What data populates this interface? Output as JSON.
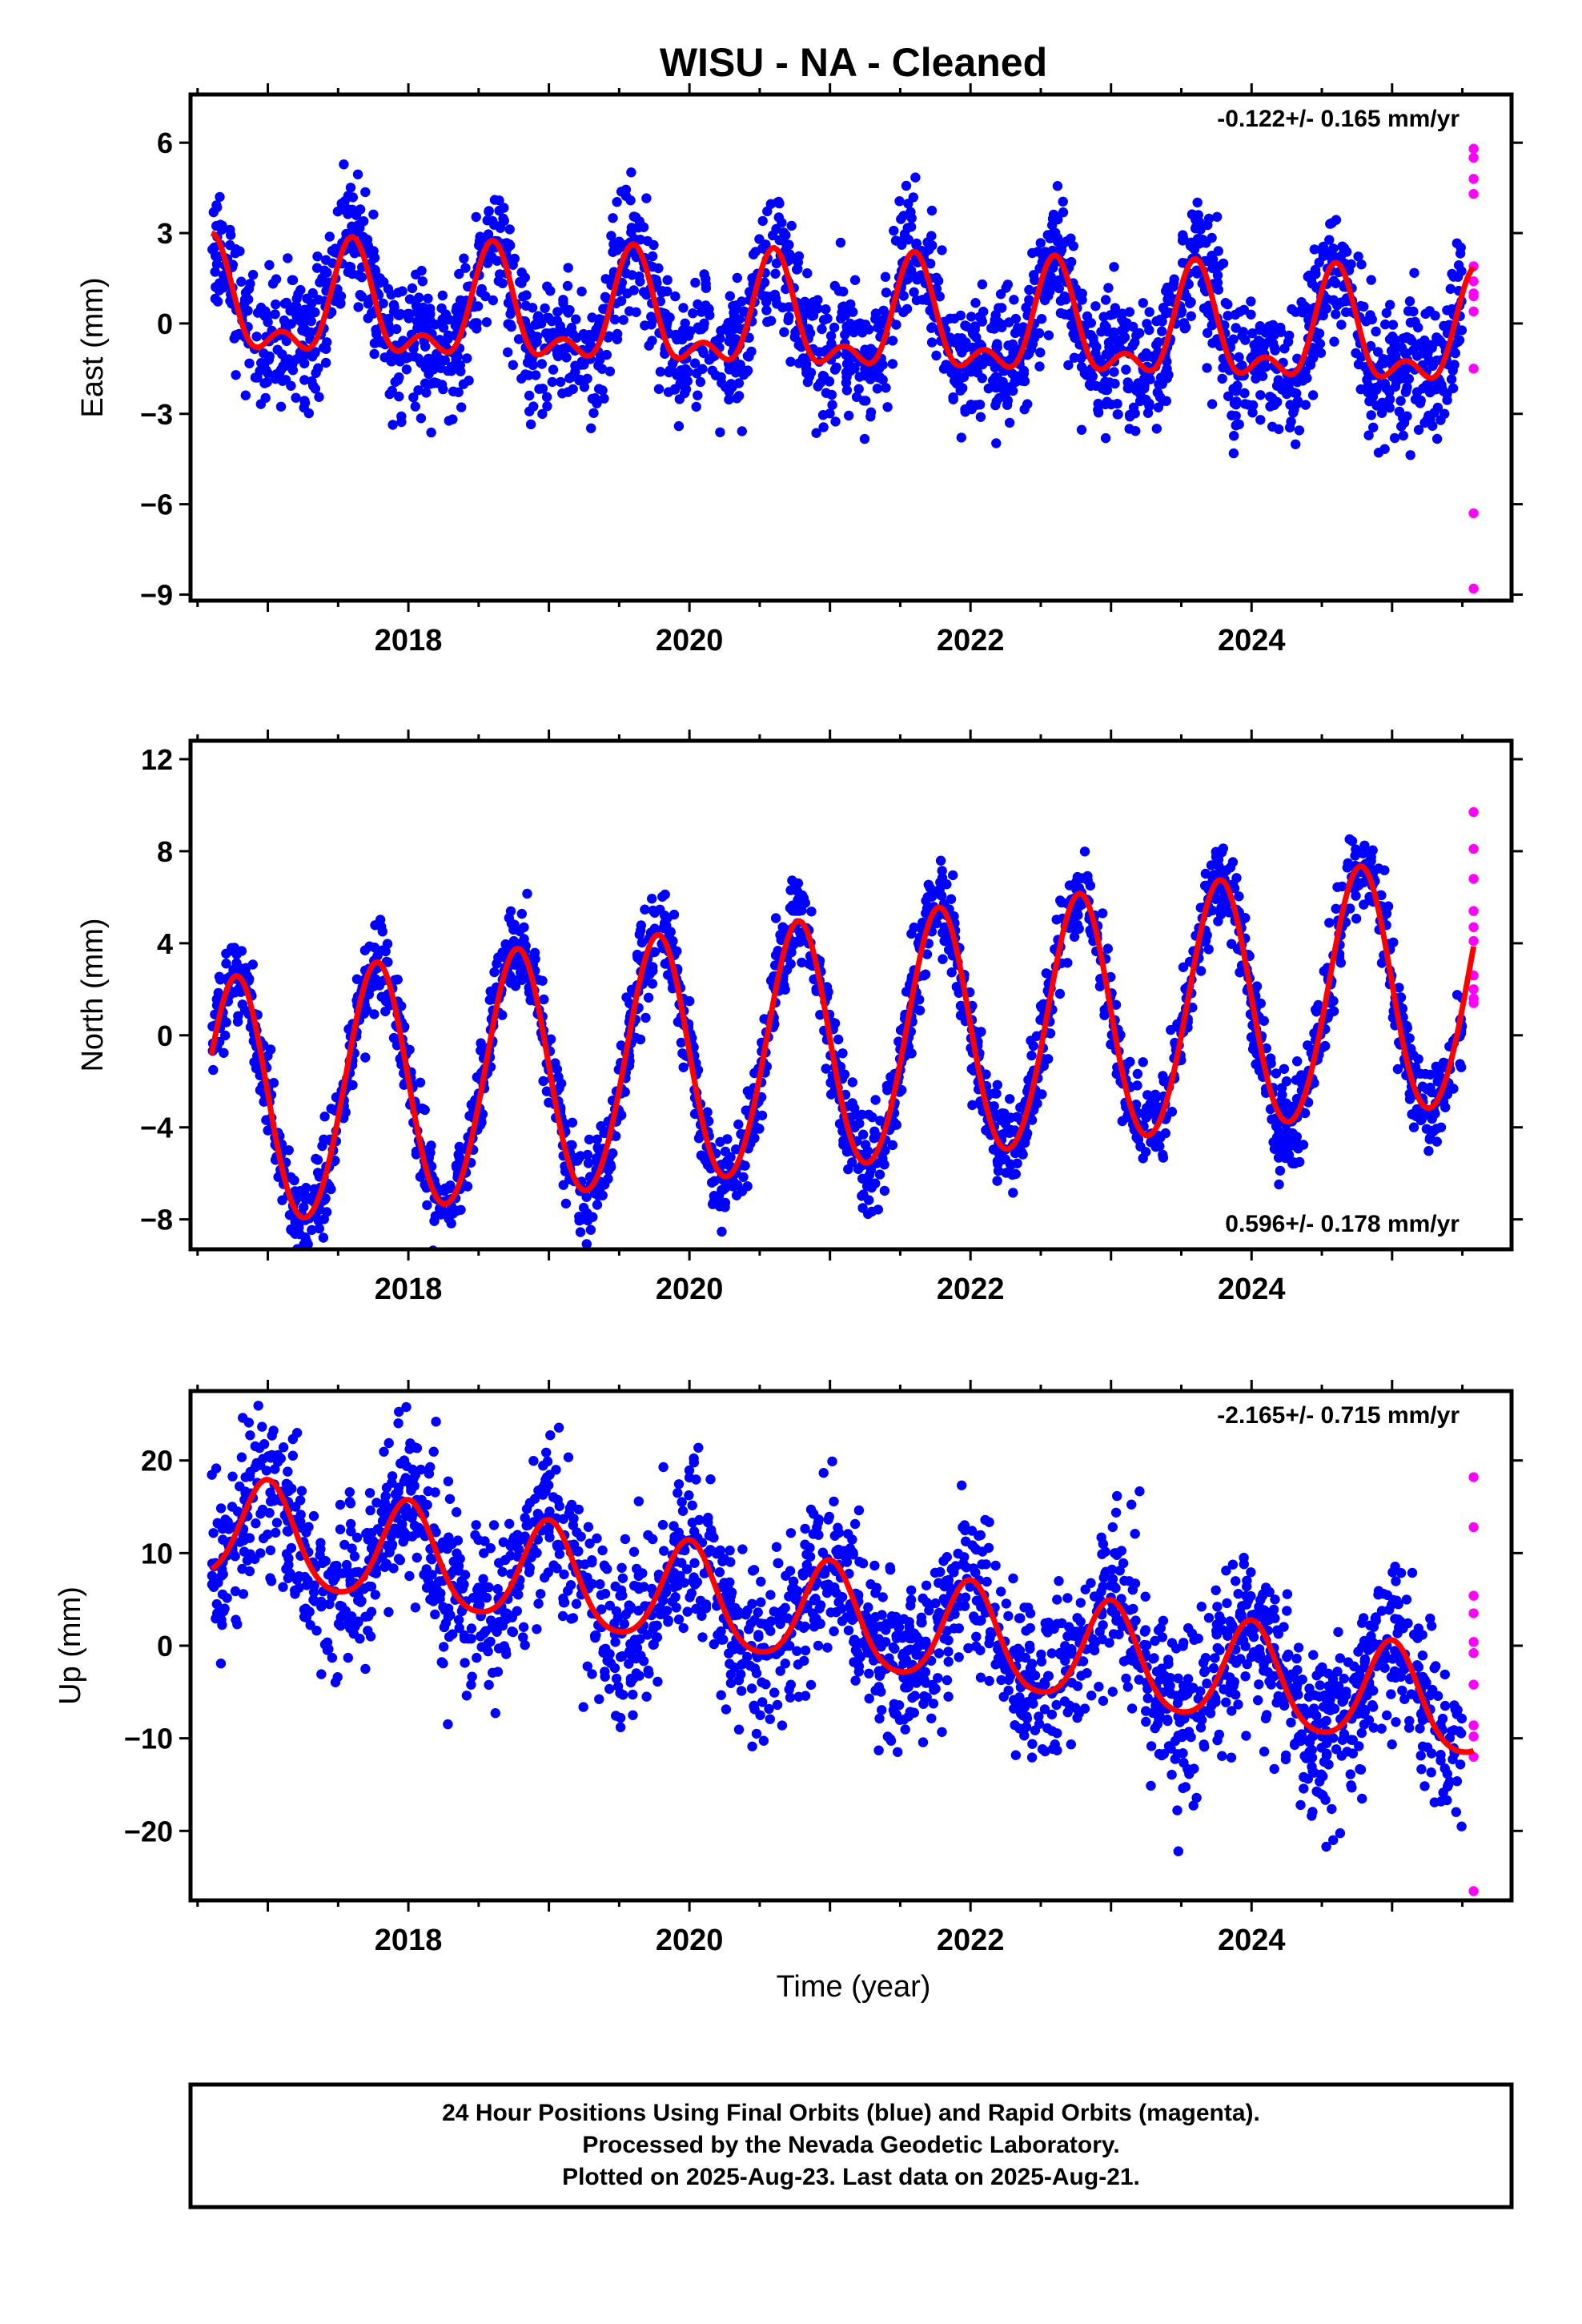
{
  "chart_data": {
    "type": "scatter",
    "title": "WISU  - NA - Cleaned",
    "xlabel": "Time (year)",
    "xlim": [
      2016.45,
      2025.85
    ],
    "xticks": [
      2018,
      2020,
      2022,
      2024
    ],
    "xtick_labels": [
      "2018",
      "2020",
      "2022",
      "2024"
    ],
    "colors": {
      "final": "#0000ff",
      "rapid": "#ff00ff",
      "fit": "#ff0000",
      "frame": "#000000"
    },
    "panels": [
      {
        "id": "east",
        "ylabel": "East (mm)",
        "ylim": [
          -9.2,
          7.6
        ],
        "yticks": [
          -9,
          -6,
          -3,
          0,
          3,
          6
        ],
        "ytick_labels": [
          "−9",
          "−6",
          "−3",
          "0",
          "3",
          "6"
        ],
        "rate_text": "-0.122+/- 0.165 mm/yr",
        "rate_position": "top-right",
        "series": [
          {
            "name": "Final Orbits",
            "color": "#0000ff",
            "model": {
              "start": 2016.6,
              "end": 2025.5,
              "offset": 0.5,
              "trend": -0.122,
              "a1": 1.6,
              "p1": 0.6,
              "a2": 0.9,
              "p2": 0.1,
              "noise": 1.1
            }
          },
          {
            "name": "Rapid Orbits",
            "color": "#ff00ff",
            "x": [
              2025.58,
              2025.58,
              2025.58,
              2025.58,
              2025.58,
              2025.58,
              2025.58,
              2025.58,
              2025.58,
              2025.58,
              2025.58,
              2025.58
            ],
            "y": [
              5.8,
              5.5,
              4.8,
              4.3,
              1.9,
              1.4,
              0.9,
              0.4,
              -1.5,
              -6.3,
              -8.8,
              1.0
            ]
          }
        ],
        "fit": {
          "name": "Fit",
          "color": "#ff0000"
        }
      },
      {
        "id": "north",
        "ylabel": "North (mm)",
        "ylim": [
          -9.3,
          12.8
        ],
        "yticks": [
          -8,
          -4,
          0,
          4,
          8,
          12
        ],
        "ytick_labels": [
          "−8",
          "−4",
          "0",
          "4",
          "8",
          "12"
        ],
        "rate_text": "0.596+/- 0.178 mm/yr",
        "rate_position": "bottom-right",
        "series": [
          {
            "name": "Final Orbits",
            "color": "#0000ff",
            "model": {
              "start": 2016.6,
              "end": 2025.5,
              "offset": -3.2,
              "trend": 0.596,
              "a1": 5.4,
              "p1": 0.77,
              "a2": 0.3,
              "p2": 0.3,
              "noise": 1.0
            }
          },
          {
            "name": "Rapid Orbits",
            "color": "#ff00ff",
            "x": [
              2025.58,
              2025.58,
              2025.58,
              2025.58,
              2025.58,
              2025.58,
              2025.58,
              2025.58,
              2025.58,
              2025.58
            ],
            "y": [
              9.7,
              8.1,
              6.8,
              5.4,
              4.7,
              4.1,
              2.6,
              2.0,
              1.6,
              1.4
            ]
          }
        ],
        "fit": {
          "name": "Fit",
          "color": "#ff0000"
        }
      },
      {
        "id": "up",
        "ylabel": "Up (mm)",
        "ylim": [
          -27.5,
          27.5
        ],
        "yticks": [
          -20,
          -10,
          0,
          10,
          20
        ],
        "ytick_labels": [
          "−20",
          "−10",
          "0",
          "10",
          "20"
        ],
        "rate_text": "-2.165+/- 0.715 mm/yr",
        "rate_position": "top-right",
        "series": [
          {
            "name": "Final Orbits",
            "color": "#0000ff",
            "model": {
              "start": 2016.6,
              "end": 2025.5,
              "offset": 12.5,
              "trend": -2.165,
              "a1": 5.5,
              "p1": 0.0,
              "a2": 0.8,
              "p2": 0.5,
              "noise": 4.5
            }
          },
          {
            "name": "Rapid Orbits",
            "color": "#ff00ff",
            "x": [
              2025.58,
              2025.58,
              2025.58,
              2025.58,
              2025.58,
              2025.58,
              2025.58,
              2025.58,
              2025.58,
              2025.58,
              2025.58
            ],
            "y": [
              18.2,
              12.8,
              5.4,
              3.5,
              0.4,
              -0.8,
              -4.2,
              -8.6,
              -9.8,
              -12.0,
              -26.5
            ]
          }
        ],
        "fit": {
          "name": "Fit",
          "color": "#ff0000"
        }
      }
    ]
  },
  "footer": {
    "line1": "24 Hour Positions Using Final Orbits (blue) and Rapid Orbits (magenta).",
    "line2": "Processed by the Nevada Geodetic Laboratory.",
    "line3": "Plotted on 2025-Aug-23. Last data on 2025-Aug-21."
  }
}
